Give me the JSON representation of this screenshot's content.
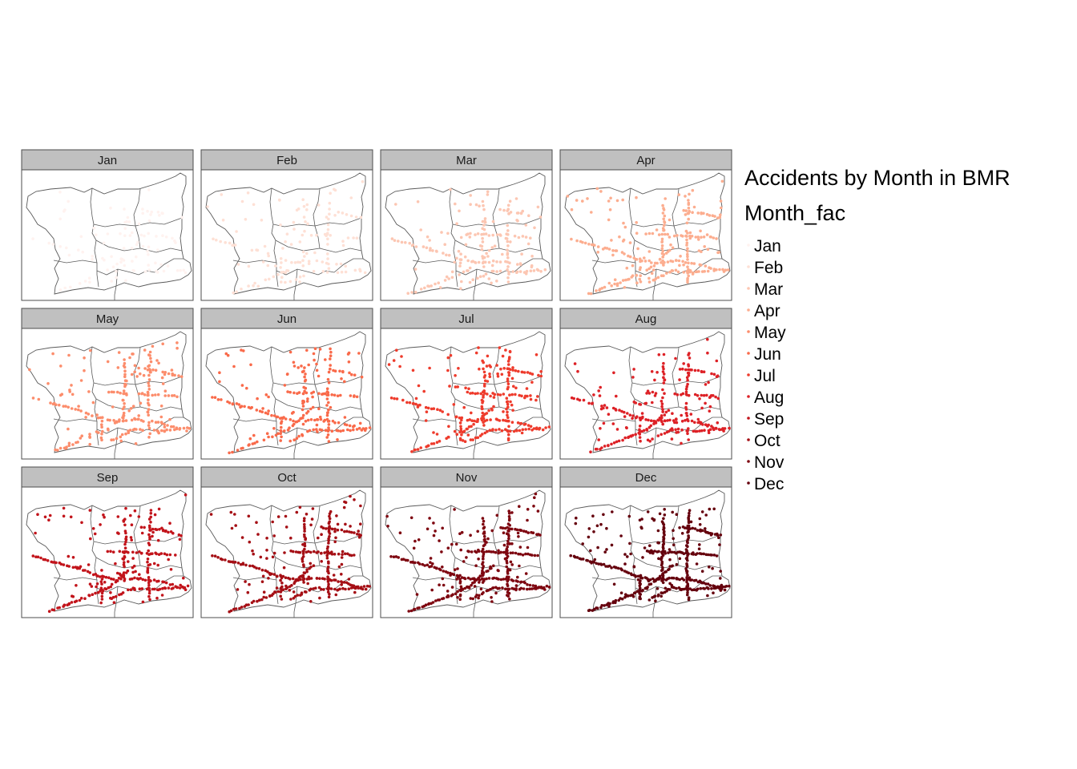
{
  "legend": {
    "title": "Accidents by Month in BMR",
    "subtitle": "Month_fac",
    "entries": [
      "Jan",
      "Feb",
      "Mar",
      "Apr",
      "May",
      "Jun",
      "Jul",
      "Aug",
      "Sep",
      "Oct",
      "Nov",
      "Dec"
    ]
  },
  "panels": [
    "Jan",
    "Feb",
    "Mar",
    "Apr",
    "May",
    "Jun",
    "Jul",
    "Aug",
    "Sep",
    "Oct",
    "Nov",
    "Dec"
  ],
  "month_colors": [
    "#fff2ef",
    "#fee0d5",
    "#fcc6b2",
    "#fcad8f",
    "#fc8d6c",
    "#f96a4a",
    "#ee3b2c",
    "#dd2126",
    "#c2141b",
    "#a50f15",
    "#7e0610",
    "#65000d"
  ],
  "frame_colors": {
    "strip_fill": "#c0c0c0",
    "panel_border": "#4d4d4d",
    "district_line": "#5a5a5a"
  },
  "panel_density": [
    0.35,
    0.45,
    0.55,
    0.7,
    0.65,
    0.65,
    0.72,
    0.7,
    0.75,
    0.8,
    0.85,
    1.0
  ]
}
